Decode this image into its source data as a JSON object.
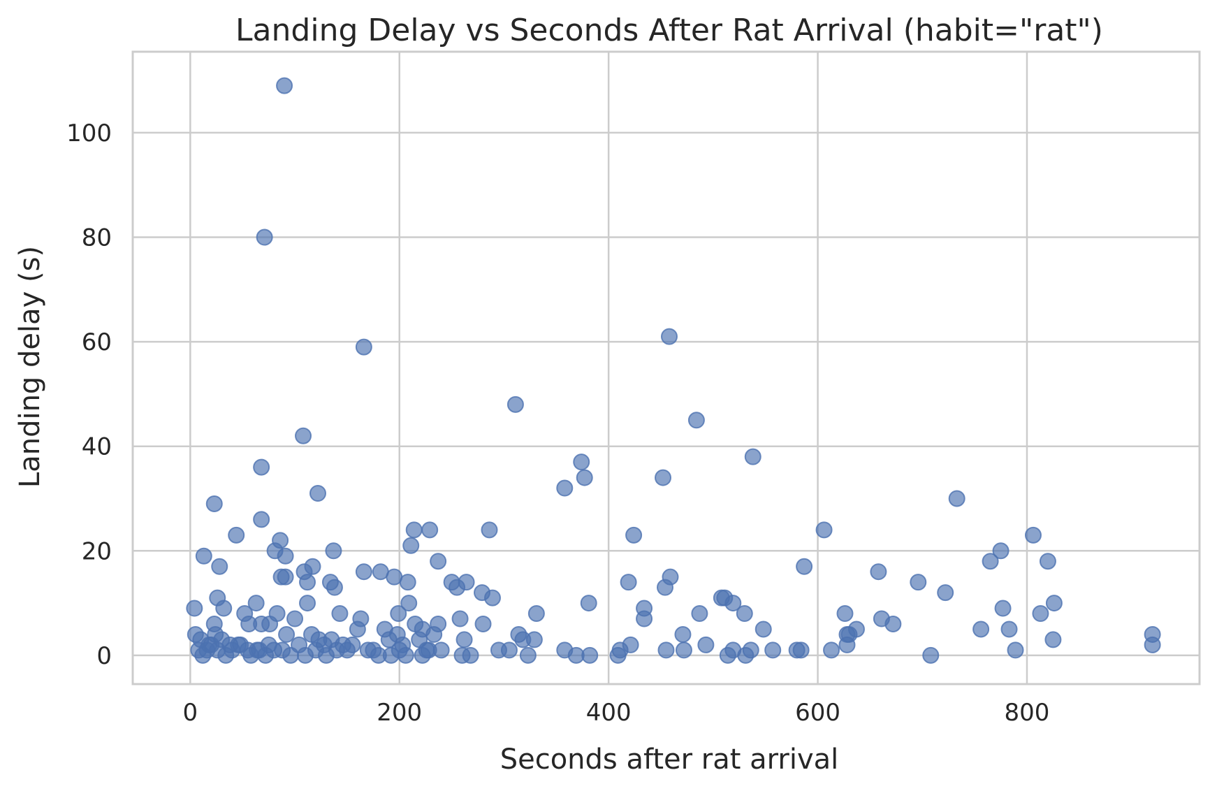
{
  "chart_data": {
    "type": "scatter",
    "title": "Landing Delay vs Seconds After Rat Arrival (habit=\"rat\")",
    "xlabel": "Seconds after rat arrival",
    "ylabel": "Landing delay (s)",
    "xlim": [
      -55,
      965
    ],
    "ylim": [
      -5.5,
      115.5
    ],
    "xticks": [
      0,
      200,
      400,
      600,
      800
    ],
    "yticks": [
      0,
      20,
      40,
      60,
      80,
      100
    ],
    "grid": true,
    "color": "#4c72b0",
    "points": [
      [
        90,
        109
      ],
      [
        71,
        80
      ],
      [
        166,
        59
      ],
      [
        458,
        61
      ],
      [
        311,
        48
      ],
      [
        484,
        45
      ],
      [
        108,
        42
      ],
      [
        538,
        38
      ],
      [
        374,
        37
      ],
      [
        68,
        36
      ],
      [
        377,
        34
      ],
      [
        452,
        34
      ],
      [
        358,
        32
      ],
      [
        122,
        31
      ],
      [
        23,
        29
      ],
      [
        733,
        30
      ],
      [
        68,
        26
      ],
      [
        44,
        23
      ],
      [
        214,
        24
      ],
      [
        229,
        24
      ],
      [
        286,
        24
      ],
      [
        424,
        23
      ],
      [
        606,
        24
      ],
      [
        806,
        23
      ],
      [
        86,
        22
      ],
      [
        211,
        21
      ],
      [
        13,
        19
      ],
      [
        91,
        19
      ],
      [
        81,
        20
      ],
      [
        137,
        20
      ],
      [
        237,
        18
      ],
      [
        765,
        18
      ],
      [
        775,
        20
      ],
      [
        820,
        18
      ],
      [
        28,
        17
      ],
      [
        117,
        17
      ],
      [
        587,
        17
      ],
      [
        109,
        16
      ],
      [
        166,
        16
      ],
      [
        182,
        16
      ],
      [
        658,
        16
      ],
      [
        87,
        15
      ],
      [
        91,
        15
      ],
      [
        195,
        15
      ],
      [
        459,
        15
      ],
      [
        112,
        14
      ],
      [
        134,
        14
      ],
      [
        208,
        14
      ],
      [
        250,
        14
      ],
      [
        264,
        14
      ],
      [
        419,
        14
      ],
      [
        696,
        14
      ],
      [
        138,
        13
      ],
      [
        255,
        13
      ],
      [
        454,
        13
      ],
      [
        722,
        12
      ],
      [
        279,
        12
      ],
      [
        289,
        11
      ],
      [
        26,
        11
      ],
      [
        508,
        11
      ],
      [
        511,
        11
      ],
      [
        4,
        9
      ],
      [
        32,
        9
      ],
      [
        63,
        10
      ],
      [
        112,
        10
      ],
      [
        209,
        10
      ],
      [
        381,
        10
      ],
      [
        434,
        9
      ],
      [
        519,
        10
      ],
      [
        777,
        9
      ],
      [
        826,
        10
      ],
      [
        52,
        8
      ],
      [
        83,
        8
      ],
      [
        143,
        8
      ],
      [
        163,
        7
      ],
      [
        199,
        8
      ],
      [
        331,
        8
      ],
      [
        487,
        8
      ],
      [
        530,
        8
      ],
      [
        626,
        8
      ],
      [
        661,
        7
      ],
      [
        672,
        6
      ],
      [
        813,
        8
      ],
      [
        23,
        6
      ],
      [
        56,
        6
      ],
      [
        68,
        6
      ],
      [
        76,
        6
      ],
      [
        100,
        7
      ],
      [
        92,
        4
      ],
      [
        215,
        6
      ],
      [
        222,
        5
      ],
      [
        237,
        6
      ],
      [
        258,
        7
      ],
      [
        280,
        6
      ],
      [
        434,
        7
      ],
      [
        548,
        5
      ],
      [
        637,
        5
      ],
      [
        756,
        5
      ],
      [
        783,
        5
      ],
      [
        825,
        3
      ],
      [
        920,
        4
      ],
      [
        920,
        2
      ],
      [
        5,
        4
      ],
      [
        10,
        3
      ],
      [
        18,
        2
      ],
      [
        24,
        4
      ],
      [
        30,
        3
      ],
      [
        38,
        2
      ],
      [
        46,
        2
      ],
      [
        55,
        1
      ],
      [
        64,
        1
      ],
      [
        75,
        2
      ],
      [
        88,
        1
      ],
      [
        104,
        2
      ],
      [
        116,
        4
      ],
      [
        123,
        3
      ],
      [
        135,
        3
      ],
      [
        146,
        2
      ],
      [
        155,
        2
      ],
      [
        160,
        5
      ],
      [
        175,
        1
      ],
      [
        186,
        5
      ],
      [
        190,
        3
      ],
      [
        198,
        4
      ],
      [
        203,
        2
      ],
      [
        219,
        3
      ],
      [
        226,
        1
      ],
      [
        233,
        4
      ],
      [
        240,
        1
      ],
      [
        262,
        3
      ],
      [
        305,
        1
      ],
      [
        314,
        4
      ],
      [
        318,
        3
      ],
      [
        329,
        3
      ],
      [
        358,
        1
      ],
      [
        369,
        0
      ],
      [
        382,
        0
      ],
      [
        409,
        0
      ],
      [
        411,
        1
      ],
      [
        421,
        2
      ],
      [
        455,
        1
      ],
      [
        471,
        4
      ],
      [
        472,
        1
      ],
      [
        493,
        2
      ],
      [
        514,
        0
      ],
      [
        519,
        1
      ],
      [
        531,
        0
      ],
      [
        536,
        1
      ],
      [
        557,
        1
      ],
      [
        580,
        1
      ],
      [
        584,
        1
      ],
      [
        613,
        1
      ],
      [
        628,
        4
      ],
      [
        630,
        4
      ],
      [
        628,
        2
      ],
      [
        708,
        0
      ],
      [
        789,
        1
      ],
      [
        8,
        1
      ],
      [
        12,
        0
      ],
      [
        16,
        1
      ],
      [
        20,
        2
      ],
      [
        26,
        1
      ],
      [
        34,
        0
      ],
      [
        40,
        1
      ],
      [
        48,
        2
      ],
      [
        58,
        0
      ],
      [
        66,
        1
      ],
      [
        72,
        0
      ],
      [
        80,
        1
      ],
      [
        96,
        0
      ],
      [
        110,
        0
      ],
      [
        120,
        1
      ],
      [
        128,
        2
      ],
      [
        130,
        0
      ],
      [
        140,
        1
      ],
      [
        150,
        1
      ],
      [
        170,
        1
      ],
      [
        180,
        0
      ],
      [
        192,
        0
      ],
      [
        200,
        1
      ],
      [
        206,
        0
      ],
      [
        222,
        0
      ],
      [
        228,
        1
      ],
      [
        260,
        0
      ],
      [
        268,
        0
      ],
      [
        295,
        1
      ],
      [
        323,
        0
      ]
    ]
  }
}
